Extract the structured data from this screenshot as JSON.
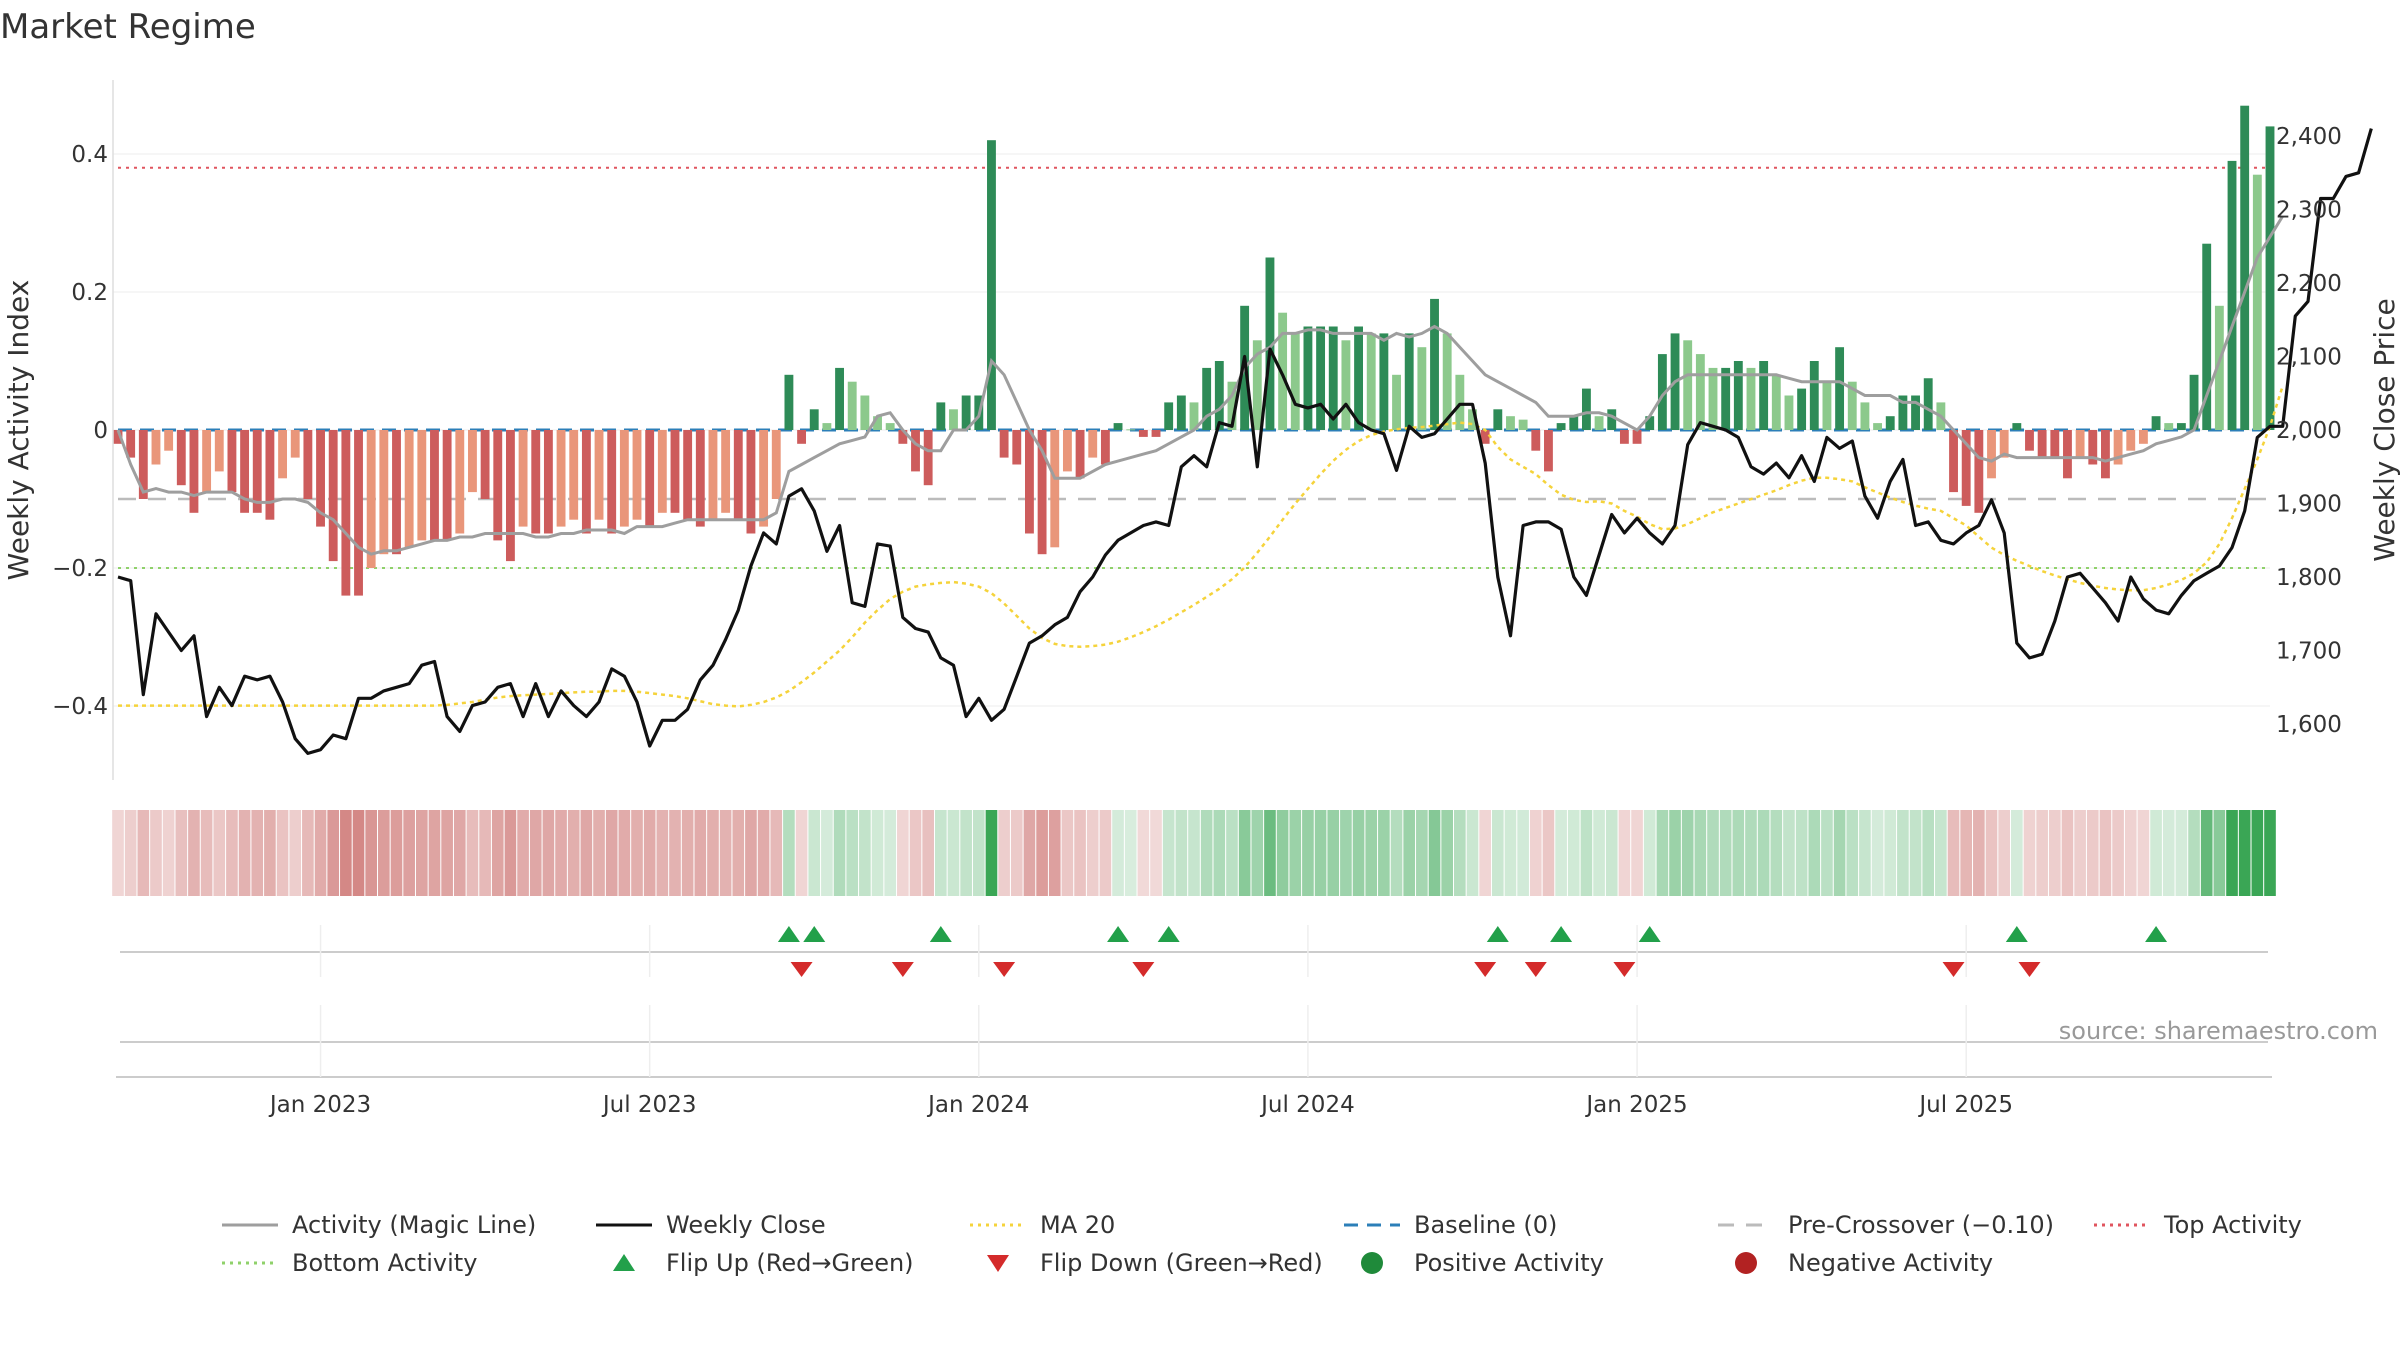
{
  "chart_data": {
    "type": "bar",
    "title": "Market Regime",
    "ylabel_left": "Weekly Activity Index",
    "ylabel_right": "Weekly Close Price",
    "left_ticks": [
      "0.4",
      "0.2",
      "0",
      "−0.2",
      "−0.4"
    ],
    "left_tick_values": [
      0.4,
      0.2,
      0,
      -0.2,
      -0.4
    ],
    "right_ticks": [
      "2,400",
      "2,300",
      "2,200",
      "2,100",
      "2,000",
      "1,900",
      "1,800",
      "1,700",
      "1,600"
    ],
    "right_tick_values": [
      2400,
      2300,
      2200,
      2100,
      2000,
      1900,
      1800,
      1700,
      1600
    ],
    "ylim_left": [
      -0.5,
      0.51
    ],
    "ylim_right": [
      1520,
      2440
    ],
    "x_ticks": [
      "Jan 2023",
      "Jul 2023",
      "Jan 2024",
      "Jul 2024",
      "Jan 2025",
      "Jul 2025"
    ],
    "x_tick_weeks": [
      16,
      42,
      68,
      94,
      120,
      146
    ],
    "levels": {
      "top": 0.38,
      "bottom": -0.2,
      "pre_crossover": -0.1,
      "baseline": 0
    },
    "activity_index": [
      -0.02,
      -0.04,
      -0.1,
      -0.05,
      -0.03,
      -0.08,
      -0.12,
      -0.09,
      -0.06,
      -0.09,
      -0.12,
      -0.12,
      -0.13,
      -0.07,
      -0.04,
      -0.1,
      -0.14,
      -0.19,
      -0.24,
      -0.24,
      -0.2,
      -0.18,
      -0.18,
      -0.17,
      -0.16,
      -0.16,
      -0.16,
      -0.15,
      -0.09,
      -0.1,
      -0.16,
      -0.19,
      -0.14,
      -0.15,
      -0.15,
      -0.14,
      -0.13,
      -0.15,
      -0.13,
      -0.15,
      -0.14,
      -0.13,
      -0.14,
      -0.12,
      -0.12,
      -0.13,
      -0.14,
      -0.13,
      -0.12,
      -0.13,
      -0.15,
      -0.14,
      -0.1,
      0.08,
      -0.02,
      0.03,
      0.01,
      0.09,
      0.07,
      0.05,
      0.02,
      0.01,
      -0.02,
      -0.06,
      -0.08,
      0.04,
      0.03,
      0.05,
      0.05,
      0.42,
      -0.04,
      -0.05,
      -0.15,
      -0.18,
      -0.17,
      -0.06,
      -0.07,
      -0.04,
      -0.05,
      0.01,
      0.001,
      -0.01,
      -0.01,
      0.04,
      0.05,
      0.04,
      0.09,
      0.1,
      0.07,
      0.18,
      0.13,
      0.25,
      0.17,
      0.14,
      0.15,
      0.15,
      0.15,
      0.13,
      0.15,
      0.14,
      0.14,
      0.08,
      0.14,
      0.12,
      0.19,
      0.14,
      0.08,
      0.03,
      -0.02,
      0.03,
      0.02,
      0.015,
      -0.03,
      -0.06,
      0.01,
      0.02,
      0.06,
      0.02,
      0.03,
      -0.02,
      -0.02,
      0.02,
      0.11,
      0.14,
      0.13,
      0.11,
      0.09,
      0.09,
      0.1,
      0.09,
      0.1,
      0.08,
      0.05,
      0.06,
      0.1,
      0.07,
      0.12,
      0.07,
      0.04,
      0.01,
      0.02,
      0.05,
      0.05,
      0.075,
      0.04,
      -0.09,
      -0.11,
      -0.12,
      -0.07,
      -0.04,
      0.01,
      -0.03,
      -0.04,
      -0.04,
      -0.07,
      -0.04,
      -0.05,
      -0.07,
      -0.05,
      -0.03,
      -0.02,
      0.02,
      0.01,
      0.01,
      0.08,
      0.27,
      0.18,
      0.39,
      0.47,
      0.37,
      0.44
    ],
    "magic_line": [
      0.0,
      -0.05,
      -0.09,
      -0.085,
      -0.09,
      -0.09,
      -0.095,
      -0.09,
      -0.09,
      -0.09,
      -0.1,
      -0.105,
      -0.105,
      -0.1,
      -0.1,
      -0.105,
      -0.12,
      -0.13,
      -0.15,
      -0.17,
      -0.18,
      -0.175,
      -0.175,
      -0.17,
      -0.165,
      -0.16,
      -0.16,
      -0.155,
      -0.155,
      -0.15,
      -0.15,
      -0.15,
      -0.15,
      -0.155,
      -0.155,
      -0.15,
      -0.15,
      -0.145,
      -0.145,
      -0.145,
      -0.15,
      -0.14,
      -0.14,
      -0.14,
      -0.135,
      -0.13,
      -0.13,
      -0.13,
      -0.13,
      -0.13,
      -0.13,
      -0.13,
      -0.12,
      -0.06,
      -0.05,
      -0.04,
      -0.03,
      -0.02,
      -0.015,
      -0.01,
      0.02,
      0.025,
      0.0,
      -0.02,
      -0.03,
      -0.03,
      0.0,
      0.0,
      0.02,
      0.1,
      0.08,
      0.04,
      0.0,
      -0.03,
      -0.07,
      -0.07,
      -0.07,
      -0.06,
      -0.05,
      -0.045,
      -0.04,
      -0.035,
      -0.03,
      -0.02,
      -0.01,
      0.0,
      0.02,
      0.03,
      0.05,
      0.09,
      0.11,
      0.12,
      0.14,
      0.14,
      0.145,
      0.145,
      0.14,
      0.14,
      0.14,
      0.14,
      0.13,
      0.14,
      0.135,
      0.14,
      0.15,
      0.14,
      0.12,
      0.1,
      0.08,
      0.07,
      0.06,
      0.05,
      0.04,
      0.02,
      0.02,
      0.02,
      0.025,
      0.025,
      0.02,
      0.01,
      0.0,
      0.02,
      0.05,
      0.07,
      0.08,
      0.08,
      0.08,
      0.08,
      0.08,
      0.08,
      0.08,
      0.08,
      0.075,
      0.07,
      0.07,
      0.07,
      0.07,
      0.06,
      0.05,
      0.05,
      0.05,
      0.04,
      0.04,
      0.03,
      0.02,
      0.0,
      -0.02,
      -0.04,
      -0.045,
      -0.035,
      -0.04,
      -0.04,
      -0.04,
      -0.04,
      -0.04,
      -0.04,
      -0.04,
      -0.045,
      -0.04,
      -0.035,
      -0.03,
      -0.02,
      -0.015,
      -0.01,
      0.0,
      0.05,
      0.1,
      0.15,
      0.2,
      0.25,
      0.28,
      0.31
    ],
    "ma20": [
      1625,
      1625,
      1625,
      1625,
      1625,
      1625,
      1625,
      1625,
      1625,
      1625,
      1625,
      1625,
      1625,
      1625,
      1625,
      1625,
      1625,
      1625,
      1625,
      1625,
      1625,
      1625,
      1625,
      1625,
      1625,
      1625,
      1626,
      1628,
      1630,
      1633,
      1636,
      1638,
      1639,
      1640,
      1641,
      1642,
      1643,
      1644,
      1644,
      1645,
      1645,
      1644,
      1642,
      1640,
      1638,
      1635,
      1631,
      1627,
      1625,
      1624,
      1626,
      1630,
      1636,
      1645,
      1657,
      1670,
      1685,
      1700,
      1718,
      1738,
      1755,
      1770,
      1780,
      1787,
      1790,
      1792,
      1793,
      1791,
      1787,
      1778,
      1764,
      1747,
      1730,
      1717,
      1709,
      1706,
      1705,
      1706,
      1708,
      1712,
      1718,
      1725,
      1733,
      1742,
      1752,
      1762,
      1773,
      1784,
      1797,
      1813,
      1833,
      1855,
      1878,
      1900,
      1920,
      1940,
      1958,
      1973,
      1985,
      1993,
      1998,
      2001,
      2003,
      2004,
      2006,
      2008,
      2010,
      2008,
      2000,
      1977,
      1960,
      1950,
      1940,
      1925,
      1912,
      1905,
      1902,
      1903,
      1900,
      1890,
      1882,
      1872,
      1865,
      1866,
      1872,
      1880,
      1888,
      1894,
      1900,
      1906,
      1912,
      1918,
      1925,
      1931,
      1935,
      1935,
      1933,
      1930,
      1922,
      1915,
      1908,
      1902,
      1897,
      1893,
      1890,
      1880,
      1870,
      1855,
      1840,
      1830,
      1822,
      1815,
      1808,
      1802,
      1797,
      1792,
      1788,
      1785,
      1783,
      1782,
      1782,
      1785,
      1790,
      1796,
      1805,
      1820,
      1845,
      1880,
      1920,
      1960,
      2005,
      2060
    ],
    "weekly_close": [
      1800,
      1795,
      1640,
      1750,
      1725,
      1700,
      1720,
      1610,
      1650,
      1625,
      1665,
      1660,
      1665,
      1630,
      1580,
      1560,
      1565,
      1585,
      1580,
      1635,
      1635,
      1645,
      1650,
      1655,
      1680,
      1685,
      1610,
      1590,
      1625,
      1630,
      1650,
      1655,
      1610,
      1655,
      1610,
      1645,
      1625,
      1610,
      1630,
      1675,
      1665,
      1630,
      1570,
      1605,
      1605,
      1620,
      1660,
      1680,
      1715,
      1755,
      1815,
      1860,
      1845,
      1910,
      1920,
      1890,
      1835,
      1870,
      1765,
      1760,
      1845,
      1842,
      1745,
      1730,
      1725,
      1690,
      1680,
      1610,
      1635,
      1605,
      1620,
      1665,
      1710,
      1720,
      1735,
      1745,
      1780,
      1800,
      1830,
      1850,
      1860,
      1870,
      1875,
      1870,
      1950,
      1965,
      1950,
      2010,
      2005,
      2100,
      1950,
      2110,
      2075,
      2035,
      2030,
      2035,
      2015,
      2035,
      2010,
      2000,
      1995,
      1945,
      2005,
      1990,
      1995,
      2015,
      2035,
      2035,
      1955,
      1800,
      1720,
      1870,
      1875,
      1875,
      1865,
      1800,
      1775,
      1830,
      1885,
      1860,
      1880,
      1860,
      1845,
      1870,
      1980,
      2010,
      2005,
      2000,
      1990,
      1950,
      1940,
      1955,
      1935,
      1965,
      1930,
      1990,
      1975,
      1985,
      1910,
      1880,
      1930,
      1960,
      1870,
      1875,
      1850,
      1845,
      1860,
      1870,
      1905,
      1860,
      1710,
      1690,
      1695,
      1740,
      1800,
      1805,
      1785,
      1765,
      1740,
      1800,
      1770,
      1755,
      1750,
      1775,
      1795,
      1805,
      1815,
      1840,
      1890,
      1990,
      2005,
      2005,
      2155,
      2175,
      2315,
      2315,
      2345,
      2350,
      2410
    ]
  },
  "legend": [
    {
      "label": "Activity (Magic Line)",
      "kind": "line",
      "color": "#9e9e9e",
      "dash": "none"
    },
    {
      "label": "Weekly Close",
      "kind": "line",
      "color": "#111111",
      "dash": "none"
    },
    {
      "label": "MA 20",
      "kind": "line",
      "color": "#f5d33b",
      "dash": "dot"
    },
    {
      "label": "Baseline (0)",
      "kind": "line",
      "color": "#2c7fb8",
      "dash": "dash"
    },
    {
      "label": "Pre-Crossover (−0.10)",
      "kind": "line",
      "color": "#bbbbbb",
      "dash": "longdash"
    },
    {
      "label": "Top Activity",
      "kind": "line",
      "color": "#e0555f",
      "dash": "dot"
    },
    {
      "label": "Bottom Activity",
      "kind": "line",
      "color": "#8fd16a",
      "dash": "dot"
    },
    {
      "label": "Flip Up (Red→Green)",
      "kind": "tri-up",
      "color": "#22a04a"
    },
    {
      "label": "Flip Down (Green→Red)",
      "kind": "tri-down",
      "color": "#d42b2b"
    },
    {
      "label": "Positive Activity",
      "kind": "dot",
      "color": "#1f8a3a"
    },
    {
      "label": "Negative Activity",
      "kind": "dot",
      "color": "#b22222"
    }
  ],
  "colors": {
    "pos_strong": "#2e8b57",
    "pos_light": "#8cc98c",
    "neg_strong": "#cd5c5c",
    "neg_light": "#e9967a",
    "flip_up": "#22a04a",
    "flip_down": "#d42b2b"
  },
  "source": "source: sharemaestro.com"
}
